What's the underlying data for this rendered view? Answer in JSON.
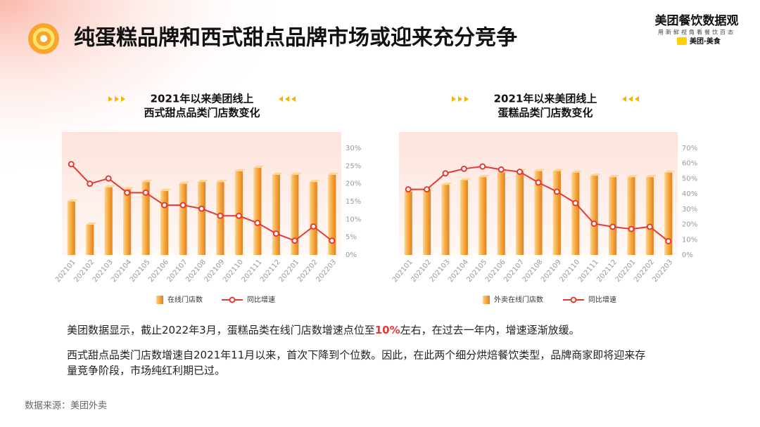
{
  "header": {
    "title": "纯蛋糕品牌和西式甜点品牌市场或迎来充分竞争"
  },
  "logo": {
    "name": "美团餐饮数据观",
    "slogan": "用新鲜视角看餐饮百态",
    "brand": "美团·美食"
  },
  "chart_data": [
    {
      "type": "combo",
      "title": "2021年以来美团线上",
      "subtitle": "西式甜点品类门店数变化",
      "categories": [
        "202101",
        "202102",
        "202103",
        "202104",
        "202105",
        "202106",
        "202107",
        "202108",
        "202109",
        "202110",
        "202111",
        "202112",
        "202201",
        "202202",
        "202203"
      ],
      "ylim": [
        0,
        30
      ],
      "yticks": [
        {
          "value": 0,
          "label": "0%"
        },
        {
          "value": 5,
          "label": "5%"
        },
        {
          "value": 10,
          "label": "10%"
        },
        {
          "value": 15,
          "label": "15%"
        },
        {
          "value": 20,
          "label": "20%"
        },
        {
          "value": 25,
          "label": "25%"
        },
        {
          "value": 30,
          "label": "30%"
        }
      ],
      "series": [
        {
          "name": "在线门店数",
          "type": "bar",
          "color": "#f29a2e",
          "values": [
            15,
            8.5,
            19,
            18.5,
            20.5,
            18,
            20,
            20.5,
            20.5,
            23.5,
            24.5,
            22.5,
            22.5,
            20.5,
            22.5
          ]
        },
        {
          "name": "同比增速",
          "type": "line",
          "color": "#e53935",
          "values": [
            25.5,
            20,
            21.5,
            17.5,
            17.5,
            14,
            14,
            13,
            11,
            11,
            9,
            6,
            4,
            8,
            4
          ]
        }
      ]
    },
    {
      "type": "combo",
      "title": "2021年以来美团线上",
      "subtitle": "蛋糕品类门店数变化",
      "categories": [
        "202101",
        "202102",
        "202103",
        "202104",
        "202105",
        "202106",
        "202107",
        "202108",
        "202109",
        "202110",
        "202111",
        "202112",
        "202201",
        "202202",
        "202203"
      ],
      "ylim": [
        0,
        70
      ],
      "yticks": [
        {
          "value": 0,
          "label": "0%"
        },
        {
          "value": 10,
          "label": "10%"
        },
        {
          "value": 20,
          "label": "20%"
        },
        {
          "value": 30,
          "label": "30%"
        },
        {
          "value": 40,
          "label": "40%"
        },
        {
          "value": 50,
          "label": "50%"
        },
        {
          "value": 60,
          "label": "60%"
        },
        {
          "value": 70,
          "label": "70%"
        }
      ],
      "series": [
        {
          "name": "外卖在线门店数",
          "type": "bar",
          "color": "#f29a2e",
          "values": [
            41.5,
            43,
            46,
            49,
            51,
            54,
            55,
            55,
            55,
            54,
            52,
            51,
            51,
            51,
            54
          ]
        },
        {
          "name": "同比增速",
          "type": "line",
          "color": "#e53935",
          "values": [
            43,
            43,
            53.5,
            56.5,
            58,
            56,
            54.5,
            47.5,
            41.5,
            34,
            20.5,
            18.5,
            17,
            18.5,
            9
          ]
        }
      ]
    }
  ],
  "body": {
    "paragraph1": [
      "美团数据显示，截止2022年3月，蛋糕品类在线门店数增速点位至",
      "10%",
      "左右，在过去一年内，增速逐渐放缓。"
    ],
    "paragraph2": [
      "西式甜点品类门店数增速自2021年11月以来，首次下降到个位数。因此，在此两个细分烘焙餐饮类型，品牌商家即将迎来存",
      "量竞争阶段，市场纯红利期已过。"
    ]
  },
  "source": "数据来源：美团外卖"
}
